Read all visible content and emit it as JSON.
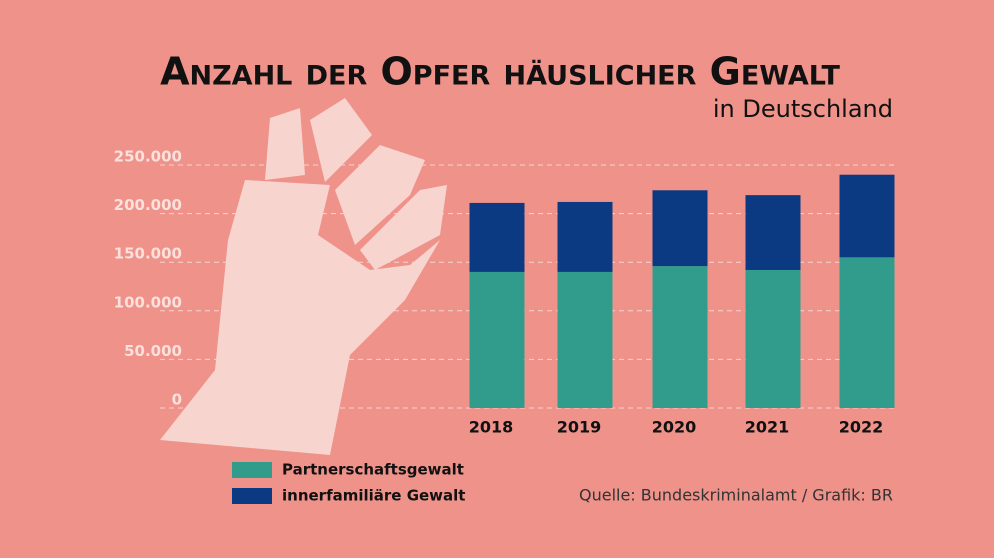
{
  "chart_data": {
    "type": "stacked_bar",
    "title": "Anzahl der Opfer häuslicher Gewalt",
    "subtitle": "in Deutschland",
    "source": "Quelle: Bundeskriminalamt / Grafik: BR",
    "categories": [
      "2018",
      "2019",
      "2020",
      "2021",
      "2022"
    ],
    "series": [
      {
        "name": "Partnerschaftsgewalt",
        "color": "#319c8c",
        "values": [
          140000,
          140000,
          146000,
          142000,
          155000
        ]
      },
      {
        "name": "innerfamiliäre Gewalt",
        "color": "#0b3a82",
        "values": [
          71000,
          72000,
          78000,
          77000,
          85000
        ]
      }
    ],
    "ylim": [
      0,
      250000
    ],
    "yticks": [
      0,
      {
        "value": 50000,
        "label": "50.000"
      },
      {
        "value": 100000,
        "label": "100.000"
      },
      {
        "value": 150000,
        "label": "150.000"
      },
      {
        "value": 200000,
        "label": "200.000"
      },
      {
        "value": 250000,
        "label": "250.000"
      }
    ],
    "grid": true
  }
}
